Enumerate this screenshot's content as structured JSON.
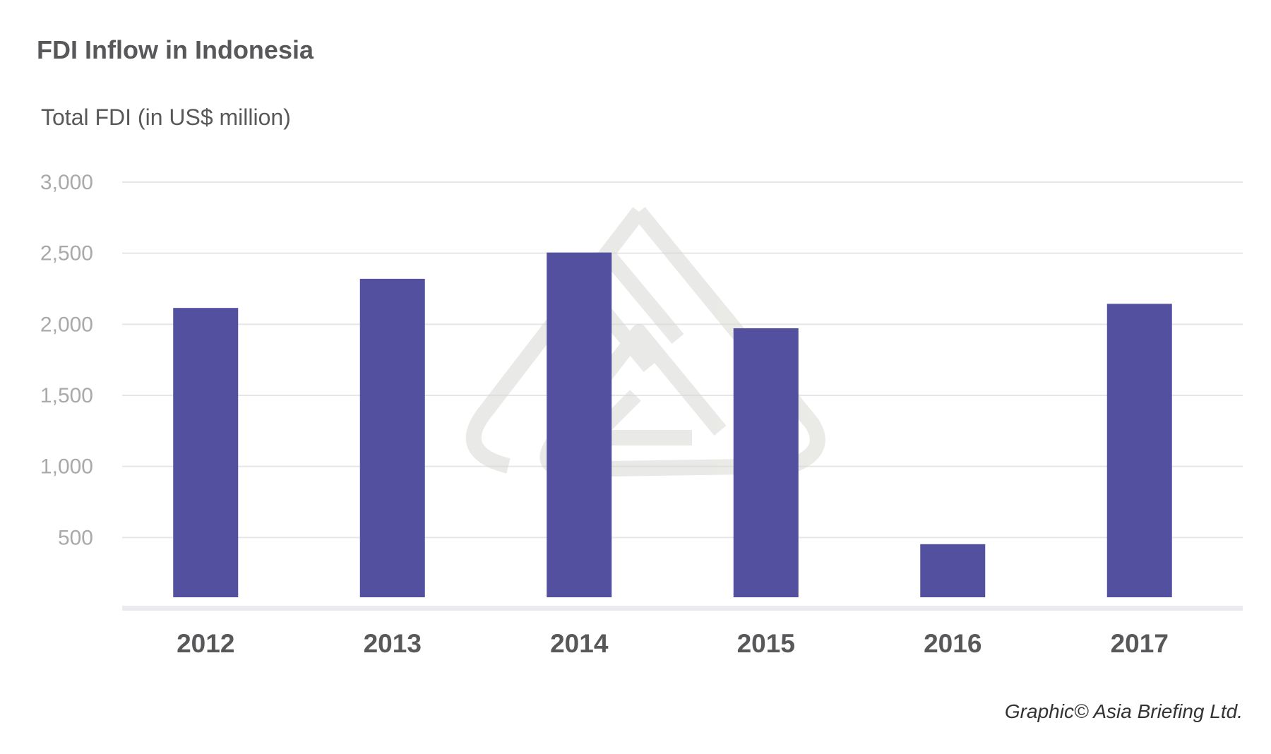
{
  "title": "FDI Inflow in Indonesia",
  "credit": "Graphic© Asia Briefing Ltd.",
  "colors": {
    "bar": "#5450a0",
    "grid": "#e6e6e8",
    "axis": "#ebebef",
    "watermark": "#d8d8d4"
  },
  "chart_data": {
    "type": "bar",
    "title": "FDI Inflow in Indonesia",
    "ylabel": "Total FDI (in US$ million)",
    "xlabel": "",
    "categories": [
      "2012",
      "2013",
      "2014",
      "2015",
      "2016",
      "2017"
    ],
    "values": [
      2115,
      2320,
      2505,
      1972,
      453,
      2144
    ],
    "ylim": [
      0,
      3000
    ],
    "yticks": [
      500,
      1000,
      1500,
      2000,
      2500,
      3000
    ],
    "ytick_labels": [
      "500",
      "1,000",
      "1,500",
      "2,000",
      "2,500",
      "3,000"
    ],
    "grid": true,
    "legend": "none"
  }
}
